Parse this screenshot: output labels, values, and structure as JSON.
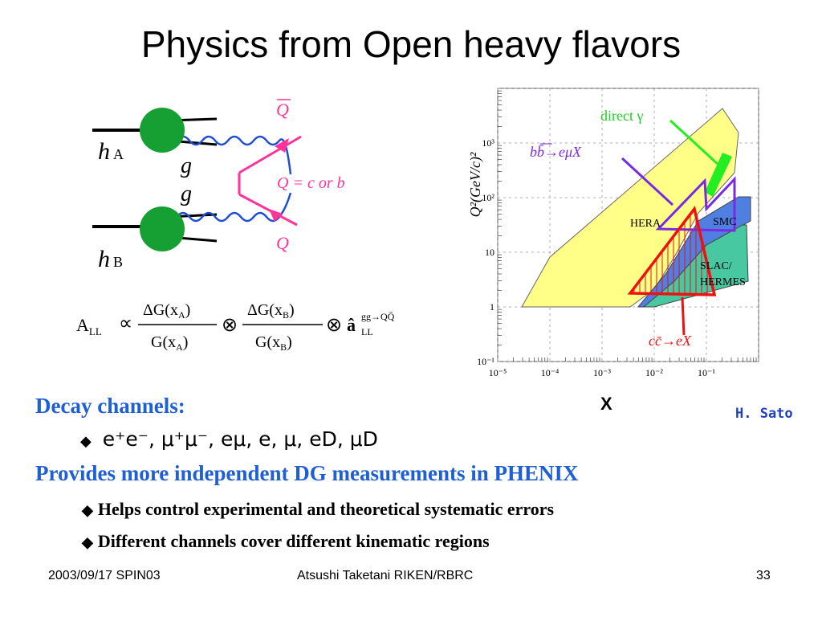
{
  "slide": {
    "title": "Physics from Open heavy flavors",
    "section1": "Decay channels:",
    "channels": "e⁺e⁻, μ⁺μ⁻, eμ, e, μ, eD, μD",
    "section2": "Provides more independent DG measurements in PHENIX",
    "bullets": [
      "Helps control experimental and theoretical systematic errors",
      "Different channels cover different kinematic regions"
    ],
    "footer_left": "2003/09/17 SPIN03",
    "footer_center": "Atsushi Taketani RIKEN/RBRC",
    "page_number": "33",
    "credit": "H. Sato",
    "x_axis_letter": "X"
  },
  "diagram": {
    "hA_h": "h",
    "hA_sub": "A",
    "hB_h": "h",
    "hB_sub": "B",
    "gluon_label_top": "g",
    "gluon_label_bottom": "g",
    "qbar_label": "Q",
    "q_label": "Q",
    "q_def": "Q  = c  or b"
  },
  "formula": {
    "lhs": "A",
    "lhs_sub": "LL",
    "prop": "∝",
    "num_a": "ΔG(x",
    "sub_a": "A",
    "den_a": "G(x",
    "num_b": "ΔG(x",
    "sub_b": "B",
    "den_b": "G(x",
    "close": ")",
    "otimes": "⊗",
    "ahat": "â",
    "ahat_sup": "gg→QQ̄",
    "ahat_sub": "LL"
  },
  "chart_data": {
    "type": "area",
    "ylabel": "Q²(GeV/c)²",
    "xlabel": "X",
    "x_scale": "log",
    "y_scale": "log",
    "xlim": [
      1e-05,
      1
    ],
    "ylim": [
      0.1,
      10000
    ],
    "x_ticks": [
      "10⁻⁵",
      "10⁻⁴",
      "10⁻³",
      "10⁻²",
      "10⁻¹"
    ],
    "y_ticks": [
      "10⁻¹",
      "1",
      "10",
      "10²",
      "10³"
    ],
    "region_labels": [
      "HERA",
      "SMC",
      "SLAC/",
      "HERMES"
    ],
    "annotations": [
      "direct γ",
      "bb̄→eμX",
      "cc̄→eX"
    ],
    "colors": {
      "hera": "#ffff88",
      "smc": "#4f7fe0",
      "slac_hermes": "#48c8a0",
      "direct_gamma": "#22ee22",
      "bb": "#7a2be2",
      "cc": "#ee1111"
    }
  }
}
